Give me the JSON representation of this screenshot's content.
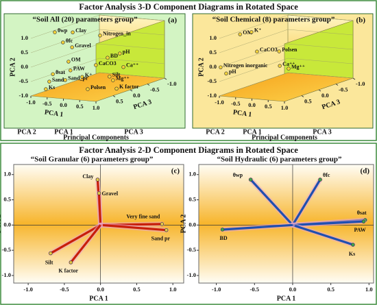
{
  "sections": [
    {
      "title": "Factor Analysis 3-D Component Diagrams in Rotated Space"
    },
    {
      "title": "Factor Analysis 2-D Component Diagrams in Rotated Space"
    }
  ],
  "chart_data": [
    {
      "type": "scatter3d",
      "title": "“Soil  All (20) parameters  group”",
      "tag": "(a)",
      "xlabel": "PCA 1",
      "ylabel": "PCA 2",
      "zlabel": "PCA 3",
      "key_labels": [
        "PCA 2",
        "PCA 1",
        "PCA 3"
      ],
      "caption": "Principal Components",
      "labels": [
        "θwp",
        "Clay",
        "Nitrogen_in",
        "θfc",
        "Gravel",
        "BD",
        "pH",
        "OM",
        "CaCO3",
        "Ca⁺⁺",
        "θsat",
        "PAW",
        "K⁺",
        "Silt",
        "Mg⁺⁺",
        "Sand",
        "Sand_pr",
        "Ks",
        "Polsen",
        "K factor"
      ],
      "x": [
        -0.79,
        -0.24,
        0.6,
        -0.54,
        -0.26,
        0.83,
        0.68,
        -0.37,
        0.47,
        0.79,
        -0.85,
        -0.31,
        0.05,
        0.89,
        0.47,
        -0.96,
        -0.47,
        -0.54,
        0.22,
        0.58
      ],
      "y": [
        1.03,
        1.08,
        1.05,
        0.7,
        0.56,
        0.3,
        0.23,
        0.05,
        0.01,
        -0.23,
        -0.43,
        -0.25,
        -0.44,
        -0.35,
        -0.72,
        -0.7,
        -0.6,
        -0.72,
        -0.85,
        -1.0
      ],
      "z": [
        0.5,
        0.5,
        0.5,
        0.5,
        0.5,
        0.5,
        0,
        0.5,
        0.5,
        0,
        0.5,
        0.5,
        0.5,
        0.5,
        0,
        0.5,
        0.5,
        1,
        0.5,
        0
      ],
      "xlim": [
        -1,
        1
      ],
      "ylim": [
        -1,
        1
      ],
      "zlim": [
        -1,
        1
      ],
      "xticks": [
        {
          "value": -1,
          "label": "-1.0"
        },
        -0.5,
        {
          "value": 0,
          "label": "0.0"
        },
        0.5,
        {
          "value": 1,
          "label": "1.0"
        }
      ],
      "yticks": [
        {
          "value": -1,
          "label": "-1.0"
        },
        -0.5,
        {
          "value": 0,
          "label": "0.0"
        },
        0.5,
        {
          "value": 1,
          "label": "1.0"
        }
      ],
      "zticks": [
        0.5,
        {
          "value": 0,
          "label": "0.0"
        },
        -0.5,
        {
          "value": -1,
          "label": "-1.0"
        }
      ],
      "color": "#f2d13a"
    },
    {
      "type": "scatter3d",
      "title": "“Soil  Chemical (8) parameters  group”",
      "tag": "(b)",
      "xlabel": "PCA 1",
      "ylabel": "PCA 2",
      "zlabel": "PCA 3",
      "key_labels": [
        "PCA 2",
        "PCA 1",
        "PCA 3"
      ],
      "caption": "Principal Components",
      "labels": [
        "OM",
        "K⁺",
        "CaCO3",
        "Polsen",
        "Nitrogen inorganic",
        "pH",
        "Ca⁺⁺",
        "Mg⁺⁺"
      ],
      "x": [
        -0.89,
        -0.54,
        -0.37,
        0.31,
        -0.96,
        -0.79,
        0.33,
        0.6
      ],
      "y": [
        0.95,
        1.06,
        0.4,
        0.47,
        0.0,
        -0.2,
        -0.03,
        -0.1
      ],
      "z": [
        0.5,
        0.5,
        0.5,
        0.5,
        1,
        1,
        0.5,
        0.5
      ],
      "xlim": [
        -1,
        1
      ],
      "ylim": [
        -1,
        1
      ],
      "zlim": [
        -1,
        1
      ],
      "xticks": [
        {
          "value": -1,
          "label": "-1.0"
        },
        -0.5,
        {
          "value": 0,
          "label": "0.0"
        },
        0.5,
        {
          "value": 1,
          "label": "1.0"
        }
      ],
      "yticks": [
        {
          "value": -1,
          "label": "-1.0"
        },
        -0.5,
        {
          "value": 0,
          "label": "0.0"
        },
        0.5,
        {
          "value": 1,
          "label": "1.0"
        }
      ],
      "zticks": [
        0.5,
        {
          "value": 0,
          "label": "0.0"
        },
        -0.5,
        {
          "value": -1,
          "label": "-1.0"
        }
      ],
      "color": "#f2d13a"
    },
    {
      "type": "biplot",
      "title": "“Soil Granular (6) parameters  group”",
      "tag": "(c)",
      "xlabel": "PCA 1",
      "ylabel": "PCA 2",
      "labels": [
        "Clay",
        "Gravel",
        "Very fine  sand",
        "Sand pr",
        "Silt",
        "K factor"
      ],
      "x": [
        -0.04,
        -0.02,
        0.85,
        0.91,
        -0.69,
        -0.41
      ],
      "y": [
        0.9,
        0.63,
        0.02,
        -0.1,
        -0.56,
        -0.74
      ],
      "xlim": [
        -1.2,
        1.15
      ],
      "ylim": [
        -1.15,
        1.2
      ],
      "xticks": [
        {
          "value": -1,
          "label": "-1.0"
        },
        -0.5,
        {
          "value": 0,
          "label": "0.0"
        },
        0.5,
        {
          "value": 1,
          "label": "1.0"
        }
      ],
      "yticks": [
        {
          "value": -1,
          "label": "-1.0"
        },
        -0.5,
        {
          "value": 0,
          "label": "0.0"
        },
        0.5,
        {
          "value": 1,
          "label": "1.0"
        }
      ],
      "color": "#c81e0a",
      "marker_color": "#e3c84a"
    },
    {
      "type": "biplot",
      "title": "“Soil Hydraulic (6) parameters  group”",
      "tag": "(d)",
      "xlabel": "PCA 1",
      "ylabel": "PCA 2",
      "labels": [
        "θwp",
        "θfc",
        "θsat",
        "PAW",
        "Ks",
        "BD"
      ],
      "x": [
        -0.55,
        0.36,
        0.95,
        0.93,
        0.79,
        -0.92
      ],
      "y": [
        0.9,
        0.9,
        0.1,
        0.07,
        -0.39,
        -0.09
      ],
      "xlim": [
        -1.23,
        1.06
      ],
      "ylim": [
        -1.15,
        1.2
      ],
      "xticks": [
        {
          "value": -1,
          "label": "-1.0"
        },
        -0.5,
        {
          "value": 0,
          "label": "0.0"
        },
        0.5,
        {
          "value": 1,
          "label": "1.0"
        }
      ],
      "yticks": [
        {
          "value": -1,
          "label": "-1.0"
        },
        -0.5,
        {
          "value": 0,
          "label": "0.0"
        },
        0.5,
        {
          "value": 1,
          "label": "1.0"
        }
      ],
      "color": "#1f4fb0",
      "marker_color": "#3fa34d"
    }
  ]
}
